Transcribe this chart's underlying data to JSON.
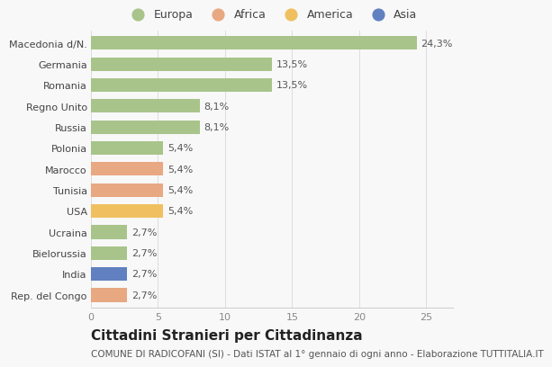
{
  "countries": [
    "Macedonia d/N.",
    "Germania",
    "Romania",
    "Regno Unito",
    "Russia",
    "Polonia",
    "Marocco",
    "Tunisia",
    "USA",
    "Ucraina",
    "Bielorussia",
    "India",
    "Rep. del Congo"
  ],
  "values": [
    24.3,
    13.5,
    13.5,
    8.1,
    8.1,
    5.4,
    5.4,
    5.4,
    5.4,
    2.7,
    2.7,
    2.7,
    2.7
  ],
  "labels": [
    "24,3%",
    "13,5%",
    "13,5%",
    "8,1%",
    "8,1%",
    "5,4%",
    "5,4%",
    "5,4%",
    "5,4%",
    "2,7%",
    "2,7%",
    "2,7%",
    "2,7%"
  ],
  "categories": [
    "Europa",
    "Africa",
    "America",
    "Asia"
  ],
  "bar_colors": [
    "#a8c48a",
    "#a8c48a",
    "#a8c48a",
    "#a8c48a",
    "#a8c48a",
    "#a8c48a",
    "#e8a882",
    "#e8a882",
    "#f0c060",
    "#a8c48a",
    "#a8c48a",
    "#6080c0",
    "#e8a882"
  ],
  "legend_colors": [
    "#a8c48a",
    "#e8a882",
    "#f0c060",
    "#6080c0"
  ],
  "xlim": [
    0,
    27
  ],
  "xticks": [
    0,
    5,
    10,
    15,
    20,
    25
  ],
  "title": "Cittadini Stranieri per Cittadinanza",
  "subtitle": "COMUNE DI RADICOFANI (SI) - Dati ISTAT al 1° gennaio di ogni anno - Elaborazione TUTTITALIA.IT",
  "background_color": "#f8f8f8",
  "bar_height": 0.65,
  "label_fontsize": 8,
  "ylabel_fontsize": 8,
  "xlabel_fontsize": 8,
  "title_fontsize": 11,
  "subtitle_fontsize": 7.5
}
